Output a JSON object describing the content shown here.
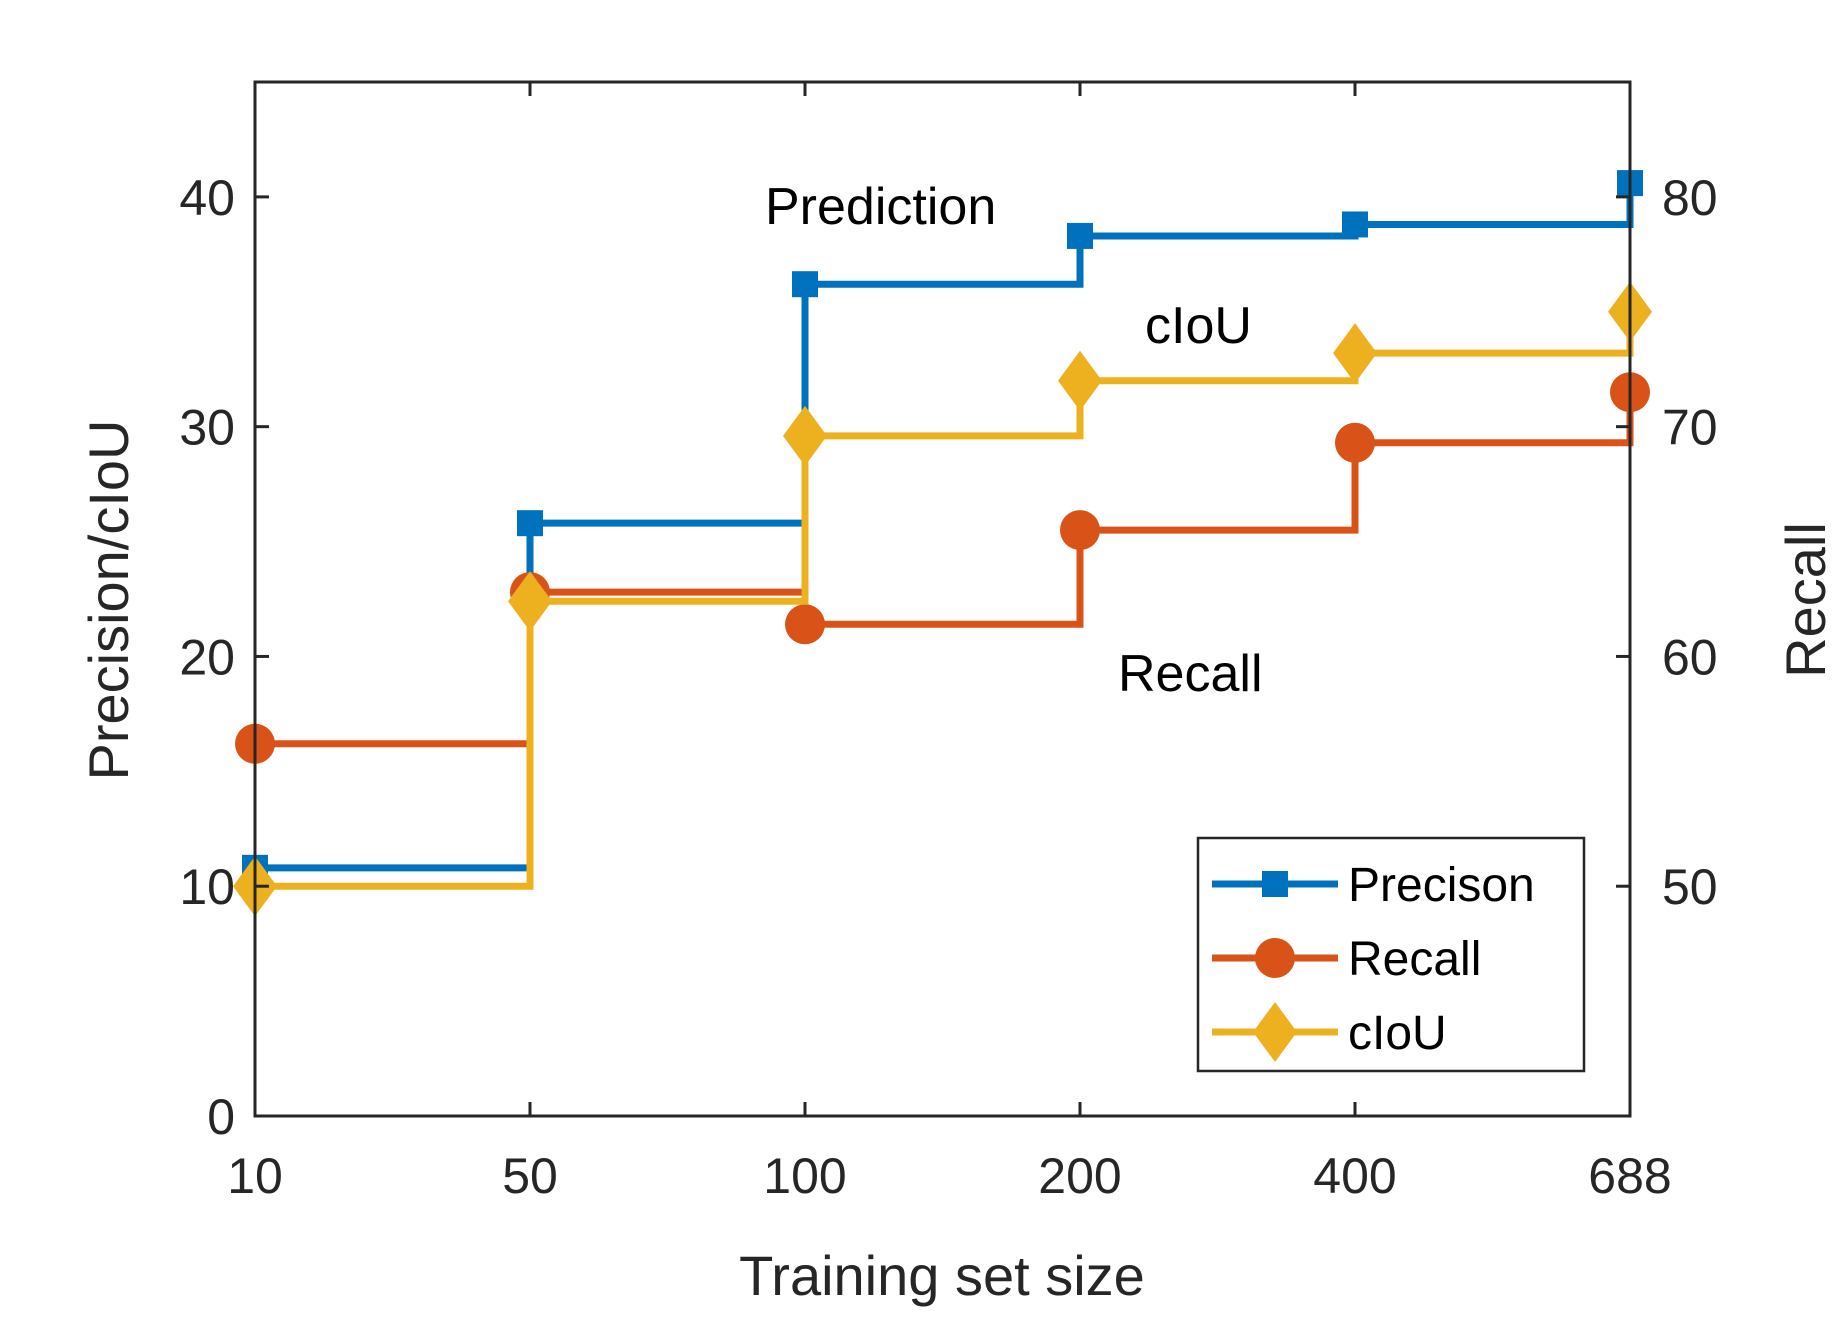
{
  "chart_data": {
    "type": "line",
    "step": true,
    "x_categories": [
      "10",
      "50",
      "100",
      "200",
      "400",
      "688"
    ],
    "xlabel": "Training set size",
    "ylabel_left": "Precision/cIoU",
    "ylabel_right": "Recall",
    "ylim_left": [
      0,
      45
    ],
    "ylim_right": [
      40,
      85
    ],
    "yticks_left": [
      0,
      10,
      20,
      30,
      40
    ],
    "yticks_right": [
      50,
      60,
      70,
      80
    ],
    "grid": false,
    "legend_position": "bottom-right",
    "series": [
      {
        "name": "Precison",
        "axis": "left",
        "color": "#0072BD",
        "marker": "square",
        "values": [
          10.8,
          25.8,
          36.2,
          38.3,
          38.8,
          40.6
        ]
      },
      {
        "name": "Recall",
        "axis": "right",
        "color": "#D95319",
        "marker": "circle",
        "values": [
          56.2,
          62.8,
          61.4,
          65.5,
          69.3,
          71.5
        ]
      },
      {
        "name": "cIoU",
        "axis": "left",
        "color": "#EDB120",
        "marker": "diamond",
        "values": [
          10.0,
          22.4,
          29.6,
          32.0,
          33.2,
          35.0
        ]
      }
    ],
    "annotations": [
      {
        "text": "Prediction",
        "x": "100",
        "y": 38.3,
        "axis": "left"
      },
      {
        "text": "cIoU",
        "x": "200",
        "y": 33.2,
        "axis": "left"
      },
      {
        "text": "Recall",
        "x": "200",
        "y": 61.9,
        "axis": "right"
      }
    ]
  }
}
